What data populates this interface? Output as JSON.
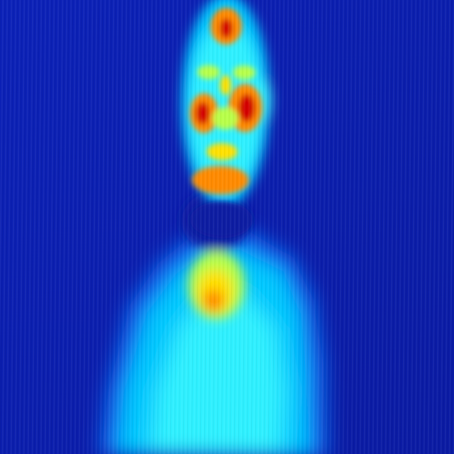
{
  "image": {
    "kind": "thermal-image",
    "subject": "person",
    "colormap": "jet",
    "colors": {
      "background_cold": "#0b21b8",
      "background_deep": "#0a1aa2",
      "frame_border": "#121212",
      "cool": "#0e6cf2",
      "mild": "#00c8ff",
      "warm": "#2ff0ff",
      "warmer": "#b8ff4a",
      "hot": "#ffe100",
      "hotter": "#ff8a00",
      "hottest": "#d40000"
    }
  }
}
